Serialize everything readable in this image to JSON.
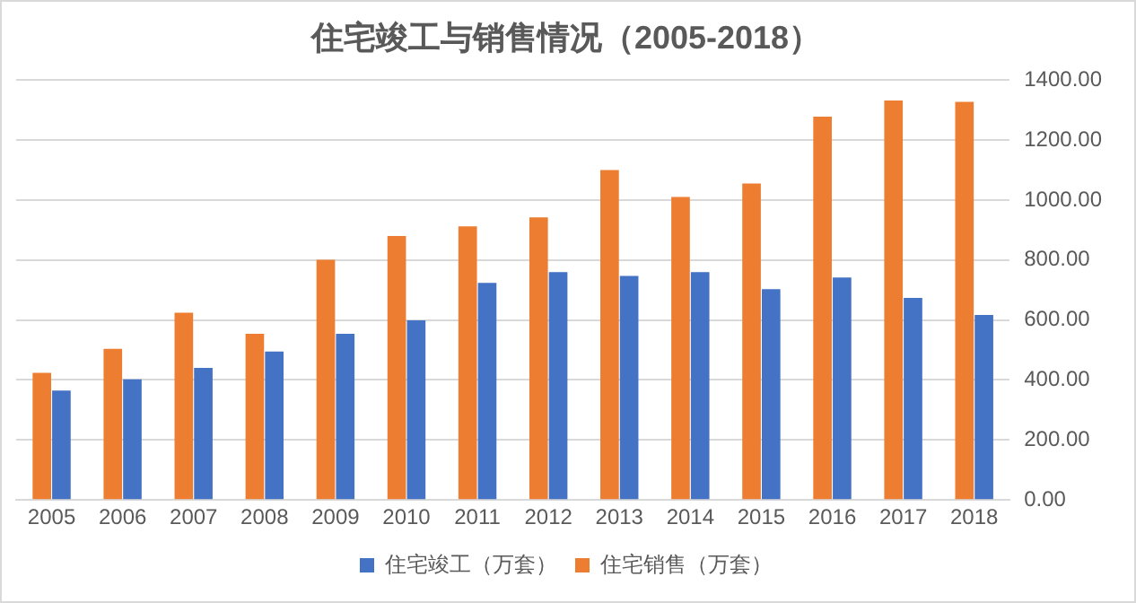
{
  "chart_data": {
    "type": "bar",
    "title": "住宅竣工与销售情况（2005-2018）",
    "categories": [
      "2005",
      "2006",
      "2007",
      "2008",
      "2009",
      "2010",
      "2011",
      "2012",
      "2013",
      "2014",
      "2015",
      "2016",
      "2017",
      "2018"
    ],
    "series": [
      {
        "name": "住宅竣工（万套）",
        "color": "#4472c4",
        "values": [
          365,
          402,
          440,
          495,
          554,
          599,
          724,
          760,
          747,
          760,
          703,
          742,
          674,
          617
        ]
      },
      {
        "name": "住宅销售（万套）",
        "color": "#ed7d31",
        "values": [
          424,
          504,
          624,
          554,
          801,
          880,
          912,
          942,
          1100,
          1010,
          1055,
          1278,
          1332,
          1327
        ]
      }
    ],
    "ylim": [
      0,
      1400
    ],
    "yticks": [
      {
        "value": 0,
        "label": "0.00"
      },
      {
        "value": 200,
        "label": "200.00"
      },
      {
        "value": 400,
        "label": "400.00"
      },
      {
        "value": 600,
        "label": "600.00"
      },
      {
        "value": 800,
        "label": "800.00"
      },
      {
        "value": 1000,
        "label": "1000.00"
      },
      {
        "value": 1200,
        "label": "1200.00"
      },
      {
        "value": 1400,
        "label": "1400.00"
      }
    ],
    "grid": "y",
    "legend": "bottom"
  }
}
